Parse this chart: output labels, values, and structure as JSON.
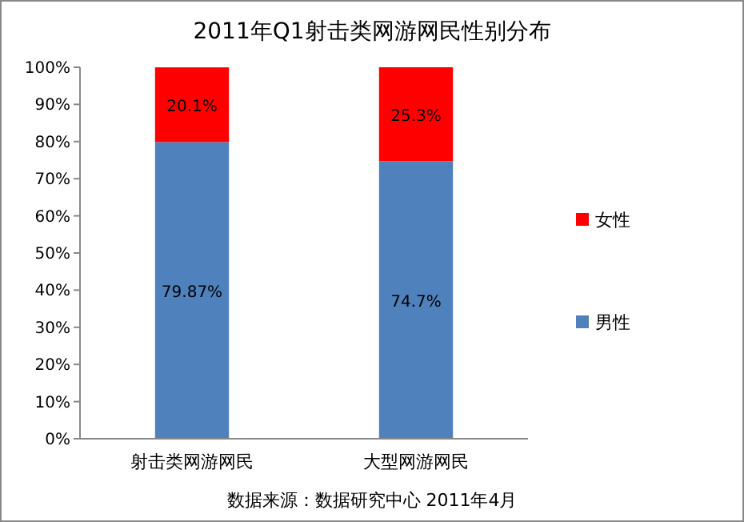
{
  "chart_data": {
    "type": "bar",
    "title": "2011年Q1射击类网游网民性别分布",
    "categories": [
      "射击类网游网民",
      "大型网游网民"
    ],
    "stacked": true,
    "series": [
      {
        "name": "男性",
        "color": "#4f81bd",
        "values": [
          79.87,
          74.7
        ],
        "value_labels": [
          "79.87%",
          "74.7%"
        ]
      },
      {
        "name": "女性",
        "color": "#ff0000",
        "values": [
          20.1,
          25.3
        ],
        "value_labels": [
          "20.1%",
          "25.3%"
        ]
      }
    ],
    "ylim": [
      0,
      100
    ],
    "yticks": [
      {
        "value": 0,
        "label": "0%"
      },
      {
        "value": 10,
        "label": "10%"
      },
      {
        "value": 20,
        "label": "20%"
      },
      {
        "value": 30,
        "label": "30%"
      },
      {
        "value": 40,
        "label": "40%"
      },
      {
        "value": 50,
        "label": "50%"
      },
      {
        "value": 60,
        "label": "60%"
      },
      {
        "value": 70,
        "label": "70%"
      },
      {
        "value": 80,
        "label": "80%"
      },
      {
        "value": 90,
        "label": "90%"
      },
      {
        "value": 100,
        "label": "100%"
      }
    ],
    "legend": "right",
    "annotations": [
      "数据来源：数据研究中心 2011年4月"
    ]
  }
}
